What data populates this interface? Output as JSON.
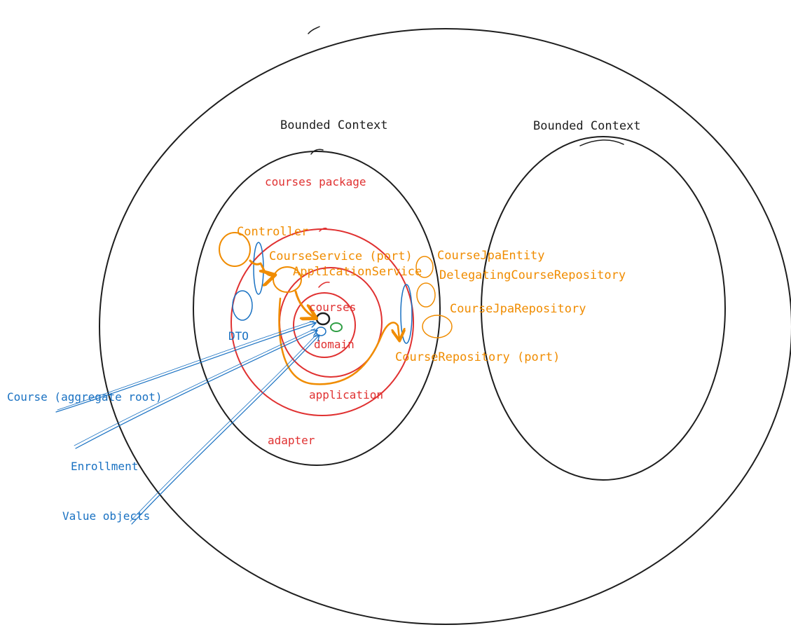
{
  "colors": {
    "black": "#1e1e1e",
    "red": "#e03131",
    "orange": "#f08c00",
    "blue": "#1971c2",
    "green": "#2f9e44",
    "background": "#ffffff"
  },
  "bounded_contexts": {
    "left_title": "Bounded Context",
    "right_title": "Bounded Context"
  },
  "package": {
    "label": "courses package"
  },
  "layers": {
    "adapter": "adapter",
    "application": "application",
    "domain": "domain",
    "courses": "courses"
  },
  "components": {
    "controller": "Controller",
    "course_service_port": "CourseService (port)",
    "application_service": "ApplicationService",
    "course_jpa_entity": "CourseJpaEntity",
    "delegating_repository": "DelegatingCourseRepository",
    "course_jpa_repository": "CourseJpaRepository",
    "course_repository_port": "CourseRepository (port)",
    "dto": "DTO"
  },
  "domain_objects": {
    "aggregate_root": "Course (aggregate root)",
    "enrollment": "Enrollment",
    "value_objects": "Value objects"
  }
}
